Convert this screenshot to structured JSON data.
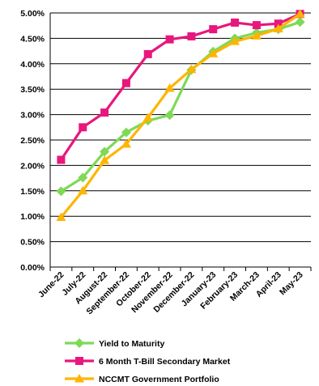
{
  "chart_data": {
    "type": "line",
    "title": "",
    "xlabel": "",
    "ylabel": "",
    "ylim": [
      0,
      0.05
    ],
    "y_tick_labels": [
      "0.00%",
      "0.50%",
      "1.00%",
      "1.50%",
      "2.00%",
      "2.50%",
      "3.00%",
      "3.50%",
      "4.00%",
      "4.50%",
      "5.00%"
    ],
    "categories": [
      "June-22",
      "July-22",
      "August-22",
      "September-22",
      "October-22",
      "November-22",
      "December-22",
      "January-23",
      "February-23",
      "March-23",
      "April-23",
      "May-23"
    ],
    "grid": "horizontal",
    "legend_position": "bottom",
    "series": [
      {
        "name": "Yield to Maturity",
        "color": "#7ed957",
        "marker": "diamond",
        "values": [
          0.0149,
          0.0176,
          0.0227,
          0.0265,
          0.0288,
          0.0299,
          0.0388,
          0.0424,
          0.045,
          0.0461,
          0.0468,
          0.0482
        ]
      },
      {
        "name": "6 Month T-Bill Secondary Market",
        "color": "#e8177d",
        "marker": "square",
        "values": [
          0.0211,
          0.0275,
          0.0304,
          0.0362,
          0.0419,
          0.0448,
          0.0454,
          0.0468,
          0.0481,
          0.0476,
          0.0479,
          0.0498
        ]
      },
      {
        "name": "NCCMT Government Portfolio",
        "color": "#ffb400",
        "marker": "triangle",
        "values": [
          0.0098,
          0.015,
          0.021,
          0.0242,
          0.0294,
          0.0352,
          0.0389,
          0.042,
          0.0444,
          0.0455,
          0.0469,
          0.0498
        ]
      }
    ]
  }
}
